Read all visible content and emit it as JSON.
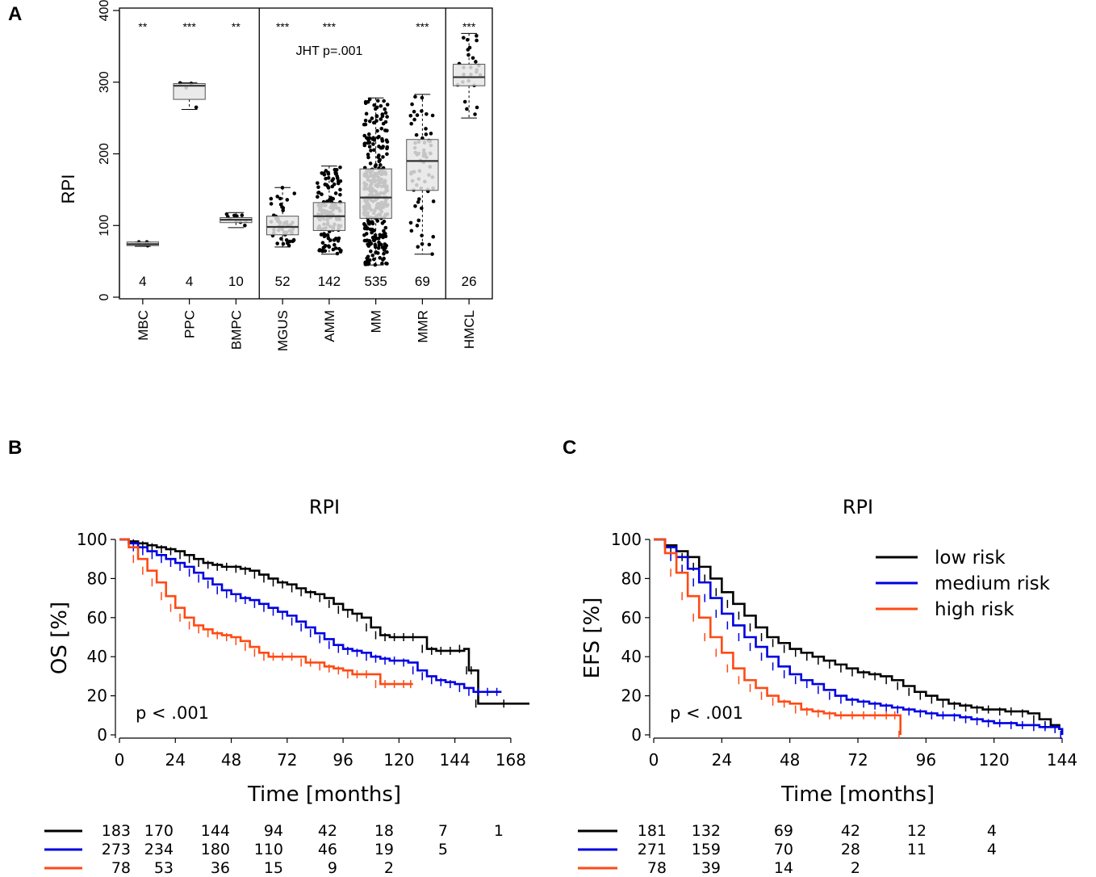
{
  "panel_letters": {
    "a": "A",
    "b": "B",
    "c": "C"
  },
  "colors": {
    "low": "#000000",
    "medium": "#0000e0",
    "high": "#ff4a14",
    "box_fill": "#e6e6e6"
  },
  "chart_data": [
    {
      "type": "boxplot",
      "ylabel": "RPI",
      "ylim": [
        0,
        400
      ],
      "yticks": [
        0,
        100,
        200,
        300,
        400
      ],
      "annotation": "JHT p=.001",
      "groups": [
        {
          "label": "MBC",
          "n": "4",
          "sig": "**",
          "min": 71,
          "q1": 72,
          "median": 74,
          "q3": 77,
          "max": 77
        },
        {
          "label": "PPC",
          "n": "4",
          "sig": "***",
          "min": 262,
          "q1": 276,
          "median": 295,
          "q3": 298,
          "max": 299
        },
        {
          "label": "BMPC",
          "n": "10",
          "sig": "**",
          "min": 97,
          "q1": 104,
          "median": 108,
          "q3": 111,
          "max": 118
        },
        {
          "label": "MGUS",
          "n": "52",
          "sig": "***",
          "min": 70,
          "q1": 87,
          "median": 98,
          "q3": 113,
          "max": 153
        },
        {
          "label": "AMM",
          "n": "142",
          "sig": "***",
          "min": 60,
          "q1": 93,
          "median": 113,
          "q3": 132,
          "max": 183
        },
        {
          "label": "MM",
          "n": "535",
          "sig": "",
          "min": 45,
          "q1": 110,
          "median": 139,
          "q3": 179,
          "max": 278
        },
        {
          "label": "MMR",
          "n": "69",
          "sig": "***",
          "min": 60,
          "q1": 149,
          "median": 190,
          "q3": 220,
          "max": 283
        },
        {
          "label": "HMCL",
          "n": "26",
          "sig": "***",
          "min": 250,
          "q1": 295,
          "median": 307,
          "q3": 325,
          "max": 368
        }
      ],
      "dividers_after": [
        "BMPC",
        "MMR"
      ]
    },
    {
      "type": "line",
      "subtype": "kaplan-meier",
      "title": "RPI",
      "ylabel": "OS [%]",
      "xlabel": "Time [months]",
      "xlim": [
        0,
        176
      ],
      "ylim": [
        0,
        100
      ],
      "xticks": [
        0,
        24,
        48,
        72,
        96,
        120,
        144,
        168
      ],
      "yticks": [
        0,
        20,
        40,
        60,
        80,
        100
      ],
      "pvalue": "p  < .001",
      "series": [
        {
          "name": "low risk",
          "color": "#000000",
          "x": [
            0,
            4,
            8,
            12,
            16,
            20,
            24,
            28,
            32,
            36,
            40,
            44,
            48,
            52,
            56,
            60,
            64,
            68,
            72,
            76,
            80,
            84,
            88,
            92,
            96,
            100,
            104,
            108,
            112,
            116,
            120,
            124,
            128,
            132,
            136,
            140,
            144,
            148,
            150,
            152,
            154,
            176
          ],
          "y": [
            100,
            99,
            98,
            97,
            96,
            95,
            94,
            92,
            90,
            88,
            87,
            86,
            86,
            85,
            84,
            82,
            80,
            78,
            77,
            75,
            73,
            72,
            70,
            67,
            64,
            62,
            60,
            55,
            51,
            50,
            50,
            50,
            50,
            44,
            43,
            43,
            43,
            44,
            33,
            33,
            16,
            16
          ]
        },
        {
          "name": "medium risk",
          "color": "#0000e0",
          "x": [
            0,
            4,
            8,
            12,
            16,
            20,
            24,
            28,
            32,
            36,
            40,
            44,
            48,
            52,
            56,
            60,
            64,
            68,
            72,
            76,
            80,
            84,
            88,
            92,
            96,
            100,
            104,
            108,
            112,
            116,
            120,
            124,
            128,
            132,
            136,
            140,
            144,
            148,
            152,
            156,
            160,
            164
          ],
          "y": [
            100,
            98,
            96,
            94,
            92,
            90,
            88,
            86,
            83,
            80,
            77,
            74,
            72,
            70,
            69,
            67,
            65,
            63,
            61,
            58,
            55,
            52,
            49,
            46,
            44,
            43,
            42,
            40,
            39,
            38,
            38,
            37,
            33,
            30,
            28,
            27,
            26,
            24,
            22,
            22,
            22,
            22
          ]
        },
        {
          "name": "high risk",
          "color": "#ff4a14",
          "x": [
            0,
            4,
            8,
            12,
            16,
            20,
            24,
            28,
            32,
            36,
            40,
            44,
            48,
            52,
            56,
            60,
            64,
            68,
            72,
            76,
            80,
            84,
            88,
            92,
            96,
            100,
            104,
            108,
            112,
            116,
            120,
            124,
            126
          ],
          "y": [
            100,
            96,
            90,
            84,
            78,
            71,
            65,
            60,
            56,
            54,
            52,
            51,
            50,
            48,
            45,
            42,
            40,
            40,
            40,
            40,
            37,
            37,
            35,
            34,
            33,
            31,
            31,
            31,
            26,
            26,
            26,
            26,
            26
          ]
        }
      ],
      "risk_table": {
        "times": [
          0,
          24,
          48,
          72,
          96,
          120,
          144,
          168
        ],
        "rows": [
          {
            "color": "#000000",
            "counts": [
              "183",
              "170",
              "144",
              "94",
              "42",
              "18",
              "7",
              "1"
            ]
          },
          {
            "color": "#0000e0",
            "counts": [
              "273",
              "234",
              "180",
              "110",
              "46",
              "19",
              "5",
              ""
            ]
          },
          {
            "color": "#ff4a14",
            "counts": [
              "78",
              "53",
              "36",
              "15",
              "9",
              "2",
              "",
              ""
            ]
          }
        ]
      }
    },
    {
      "type": "line",
      "subtype": "kaplan-meier",
      "title": "RPI",
      "ylabel": "EFS [%]",
      "xlabel": "Time [months]",
      "xlim": [
        0,
        144
      ],
      "ylim": [
        0,
        100
      ],
      "xticks": [
        0,
        24,
        48,
        72,
        96,
        120,
        144
      ],
      "yticks": [
        0,
        20,
        40,
        60,
        80,
        100
      ],
      "pvalue": "p  < .001",
      "legend": {
        "position": "top-right",
        "entries": [
          "low risk",
          "medium risk",
          "high risk"
        ]
      },
      "series": [
        {
          "name": "low risk",
          "color": "#000000",
          "x": [
            0,
            4,
            8,
            12,
            16,
            20,
            24,
            28,
            32,
            36,
            40,
            44,
            48,
            52,
            56,
            60,
            64,
            68,
            72,
            76,
            80,
            84,
            88,
            92,
            96,
            100,
            104,
            108,
            112,
            116,
            120,
            124,
            128,
            132,
            136,
            140,
            143,
            144
          ],
          "y": [
            100,
            97,
            94,
            91,
            86,
            80,
            73,
            67,
            61,
            55,
            50,
            47,
            44,
            42,
            40,
            38,
            36,
            34,
            32,
            31,
            30,
            28,
            25,
            22,
            20,
            18,
            16,
            15,
            14,
            13,
            13,
            12,
            12,
            11,
            8,
            5,
            3,
            0
          ]
        },
        {
          "name": "medium risk",
          "color": "#0000e0",
          "x": [
            0,
            4,
            8,
            12,
            16,
            20,
            24,
            28,
            32,
            36,
            40,
            44,
            48,
            52,
            56,
            60,
            64,
            68,
            72,
            76,
            80,
            84,
            88,
            92,
            96,
            100,
            104,
            108,
            112,
            116,
            120,
            124,
            128,
            132,
            136,
            140,
            143,
            144
          ],
          "y": [
            100,
            96,
            91,
            85,
            78,
            70,
            62,
            56,
            50,
            45,
            40,
            35,
            31,
            28,
            26,
            23,
            20,
            18,
            17,
            16,
            15,
            14,
            13,
            12,
            11,
            10,
            10,
            9,
            8,
            7,
            6,
            6,
            5,
            5,
            4,
            4,
            3,
            0
          ]
        },
        {
          "name": "high risk",
          "color": "#ff4a14",
          "x": [
            0,
            4,
            8,
            12,
            16,
            20,
            24,
            28,
            32,
            36,
            40,
            44,
            48,
            52,
            56,
            60,
            64,
            68,
            72,
            76,
            80,
            84,
            86,
            87
          ],
          "y": [
            100,
            93,
            83,
            71,
            60,
            50,
            42,
            34,
            28,
            24,
            20,
            17,
            16,
            13,
            12,
            11,
            10,
            10,
            10,
            10,
            10,
            10,
            10,
            0
          ]
        }
      ],
      "risk_table": {
        "times": [
          0,
          24,
          48,
          72,
          96,
          120
        ],
        "rows": [
          {
            "color": "#000000",
            "counts": [
              "181",
              "132",
              "69",
              "42",
              "12",
              "4"
            ]
          },
          {
            "color": "#0000e0",
            "counts": [
              "271",
              "159",
              "70",
              "28",
              "11",
              "4"
            ]
          },
          {
            "color": "#ff4a14",
            "counts": [
              "78",
              "39",
              "14",
              "2",
              "",
              ""
            ]
          }
        ]
      }
    }
  ]
}
